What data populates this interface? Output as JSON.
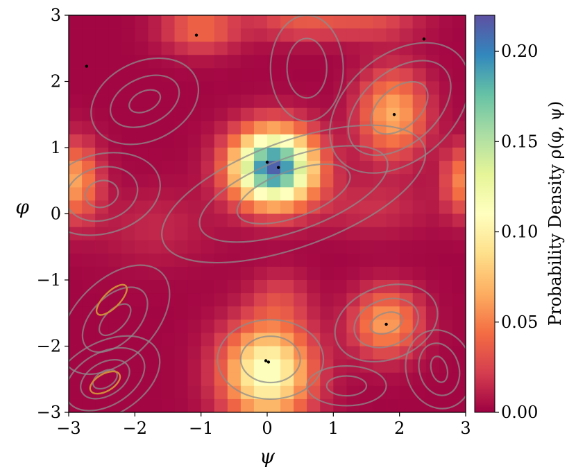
{
  "chart_data": {
    "type": "heatmap",
    "title": "",
    "xlabel": "ψ",
    "ylabel": "φ",
    "xlim": [
      -3,
      3
    ],
    "ylim": [
      -3,
      3
    ],
    "x_ticks": [
      "−3",
      "−2",
      "−1",
      "0",
      "1",
      "2",
      "3"
    ],
    "y_ticks": [
      "−3",
      "−2",
      "−1",
      "0",
      "1",
      "2",
      "3"
    ],
    "grid": 30,
    "colorbar": {
      "label": "Probability Density ρ(φ, ψ)",
      "range": [
        0.0,
        0.22
      ],
      "ticks": [
        "0.00",
        "0.05",
        "0.10",
        "0.15",
        "0.20"
      ],
      "colormap": "Spectral",
      "colors": [
        "#9e0142",
        "#d53e4f",
        "#f46d43",
        "#fdae61",
        "#fee08b",
        "#ffffbf",
        "#e6f598",
        "#abdda4",
        "#66c2a5",
        "#3288bd",
        "#5e4fa2"
      ]
    },
    "density_peaks": [
      {
        "psi": 0.1,
        "phi": 0.7,
        "amplitude": 0.21,
        "sx": 0.42,
        "sy": 0.38
      },
      {
        "psi": 0.0,
        "phi": -2.4,
        "amplitude": 0.115,
        "sx": 0.45,
        "sy": 0.5
      },
      {
        "psi": 1.9,
        "phi": 1.5,
        "amplitude": 0.065,
        "sx": 0.35,
        "sy": 0.45
      },
      {
        "psi": 1.8,
        "phi": -1.65,
        "amplitude": 0.06,
        "sx": 0.35,
        "sy": 0.35
      },
      {
        "psi": -2.9,
        "phi": 0.5,
        "amplitude": 0.06,
        "sx": 0.25,
        "sy": 0.4
      },
      {
        "psi": 2.95,
        "phi": 0.5,
        "amplitude": 0.05,
        "sx": 0.2,
        "sy": 0.35
      },
      {
        "psi": -1.0,
        "phi": 2.8,
        "amplitude": 0.04,
        "sx": 0.4,
        "sy": 0.25
      },
      {
        "psi": 0.5,
        "phi": 2.9,
        "amplitude": 0.03,
        "sx": 0.5,
        "sy": 0.2
      },
      {
        "psi": 1.6,
        "phi": 2.9,
        "amplitude": 0.025,
        "sx": 0.5,
        "sy": 0.2
      },
      {
        "psi": 0.2,
        "phi": -1.3,
        "amplitude": 0.02,
        "sx": 0.3,
        "sy": 0.3
      },
      {
        "psi": 1.6,
        "phi": 0.1,
        "amplitude": 0.015,
        "sx": 0.6,
        "sy": 0.3
      },
      {
        "psi": -1.7,
        "phi": -0.2,
        "amplitude": 0.012,
        "sx": 0.6,
        "sy": 0.4
      }
    ],
    "marked_points": [
      {
        "psi": 0.17,
        "phi": 0.7
      },
      {
        "psi": 0.0,
        "phi": 0.78
      },
      {
        "psi": -0.02,
        "phi": -2.22
      },
      {
        "psi": 0.02,
        "phi": -2.24
      },
      {
        "psi": 1.92,
        "phi": 1.5
      },
      {
        "psi": 1.8,
        "phi": -1.67
      },
      {
        "psi": -1.07,
        "phi": 2.7
      },
      {
        "psi": -2.73,
        "phi": 2.23
      },
      {
        "psi": 2.37,
        "phi": 2.64
      }
    ],
    "contours": [
      {
        "psi": -1.85,
        "phi": 1.7,
        "rx": [
          0.25,
          0.55,
          0.85
        ],
        "ry": [
          0.15,
          0.35,
          0.6
        ],
        "rot": -25,
        "color": "#8c8c8c"
      },
      {
        "psi": 0.6,
        "phi": 2.2,
        "rx": [
          0.3,
          0.55
        ],
        "ry": [
          0.45,
          0.8
        ],
        "rot": 0,
        "color": "#8c8c8c"
      },
      {
        "psi": 2.0,
        "phi": 1.6,
        "rx": [
          0.5,
          0.9,
          1.2
        ],
        "ry": [
          0.3,
          0.55,
          0.8
        ],
        "rot": -40,
        "color": "#8c8c8c"
      },
      {
        "psi": -2.5,
        "phi": 0.3,
        "rx": [
          0.25,
          0.55,
          0.9
        ],
        "ry": [
          0.2,
          0.4,
          0.6
        ],
        "rot": -15,
        "color": "#8c8c8c"
      },
      {
        "psi": 0.4,
        "phi": 0.3,
        "rx": [
          0.9,
          1.5,
          2.1
        ],
        "ry": [
          0.35,
          0.55,
          0.8
        ],
        "rot": -20,
        "color": "#8c8c8c"
      },
      {
        "psi": -2.3,
        "phi": -1.6,
        "rx": [
          0.3,
          0.6,
          1.0
        ],
        "ry": [
          0.15,
          0.35,
          0.6
        ],
        "rot": -45,
        "color": "#8c8c8c"
      },
      {
        "psi": -2.45,
        "phi": -2.5,
        "rx": [
          0.2,
          0.4,
          0.65,
          0.9
        ],
        "ry": [
          0.12,
          0.25,
          0.4,
          0.55
        ],
        "rot": -30,
        "color": "#8c8c8c"
      },
      {
        "psi": 1.8,
        "phi": -1.65,
        "rx": [
          0.25,
          0.5,
          0.8
        ],
        "ry": [
          0.15,
          0.35,
          0.55
        ],
        "rot": -20,
        "color": "#8c8c8c"
      },
      {
        "psi": 0.05,
        "phi": -2.2,
        "rx": [
          0.45,
          0.8
        ],
        "ry": [
          0.35,
          0.6
        ],
        "rot": 0,
        "color": "#8c8c8c"
      },
      {
        "psi": 2.6,
        "phi": -2.35,
        "rx": [
          0.12,
          0.3,
          0.5
        ],
        "ry": [
          0.2,
          0.4,
          0.6
        ],
        "rot": -15,
        "color": "#8c8c8c"
      },
      {
        "psi": 1.2,
        "phi": -2.6,
        "rx": [
          0.3,
          0.6
        ],
        "ry": [
          0.15,
          0.3
        ],
        "rot": 0,
        "color": "#8c8c8c"
      }
    ],
    "orange_contours": [
      {
        "psi": -2.45,
        "phi": -2.55,
        "rx": 0.25,
        "ry": 0.13,
        "rot": -30
      },
      {
        "psi": -2.35,
        "phi": -1.3,
        "rx": 0.3,
        "ry": 0.12,
        "rot": -45
      }
    ]
  }
}
